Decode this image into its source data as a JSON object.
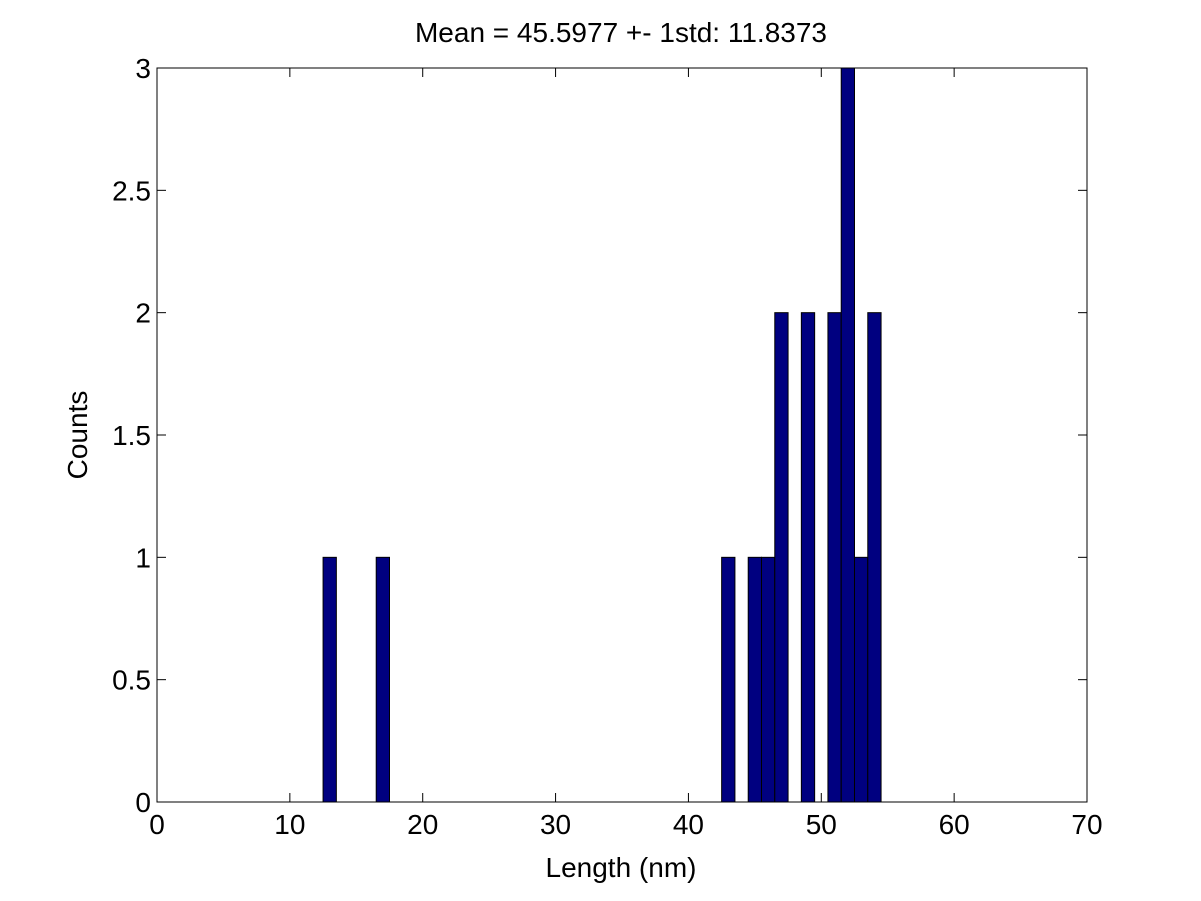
{
  "chart_data": {
    "type": "bar",
    "title": "Mean = 45.5977 +- 1std: 11.8373",
    "xlabel": "Length (nm)",
    "ylabel": "Counts",
    "xlim": [
      0,
      70
    ],
    "ylim": [
      0,
      3
    ],
    "xticks": [
      "0",
      "10",
      "20",
      "30",
      "40",
      "50",
      "60",
      "70"
    ],
    "yticks": [
      "0",
      "0.5",
      "1",
      "1.5",
      "2",
      "2.5",
      "3"
    ],
    "grid": false,
    "bin_width": 1,
    "bars": [
      {
        "x": 13,
        "count": 1
      },
      {
        "x": 17,
        "count": 1
      },
      {
        "x": 43,
        "count": 1
      },
      {
        "x": 45,
        "count": 1
      },
      {
        "x": 46,
        "count": 1
      },
      {
        "x": 47,
        "count": 2
      },
      {
        "x": 49,
        "count": 2
      },
      {
        "x": 51,
        "count": 2
      },
      {
        "x": 52,
        "count": 3
      },
      {
        "x": 53,
        "count": 1
      },
      {
        "x": 54,
        "count": 2
      }
    ],
    "colors": {
      "bar_fill": "#000080",
      "bar_edge": "#000000",
      "axes": "#000000"
    }
  }
}
